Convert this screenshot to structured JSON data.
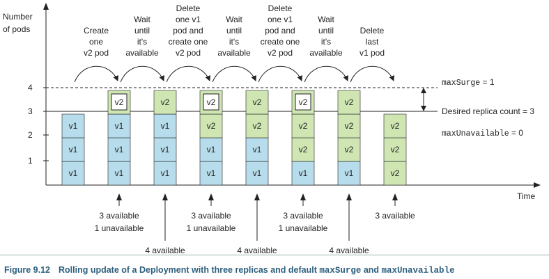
{
  "y_axis": {
    "title_line1": "Number",
    "title_line2": "of pods",
    "ticks": [
      "1",
      "2",
      "3",
      "4"
    ]
  },
  "x_axis": {
    "title": "Time"
  },
  "steps": [
    {
      "lines": [
        "Create",
        "one",
        "v2 pod"
      ]
    },
    {
      "lines": [
        "Wait",
        "until",
        "it's",
        "available"
      ]
    },
    {
      "lines": [
        "Delete",
        "one v1",
        "pod and",
        "create one",
        "v2 pod"
      ]
    },
    {
      "lines": [
        "Wait",
        "until",
        "it's",
        "available"
      ]
    },
    {
      "lines": [
        "Delete",
        "one v1",
        "pod and",
        "create one",
        "v2 pod"
      ]
    },
    {
      "lines": [
        "Wait",
        "until",
        "it's",
        "available"
      ]
    },
    {
      "lines": [
        "Delete",
        "last",
        "v1 pod"
      ]
    }
  ],
  "columns": [
    {
      "pods": [
        {
          "label": "v1",
          "state": "available-v1"
        },
        {
          "label": "v1",
          "state": "available-v1"
        },
        {
          "label": "v1",
          "state": "available-v1"
        }
      ]
    },
    {
      "pods": [
        {
          "label": "v1",
          "state": "available-v1"
        },
        {
          "label": "v1",
          "state": "available-v1"
        },
        {
          "label": "v1",
          "state": "available-v1"
        },
        {
          "label": "v2",
          "state": "unavailable-v2"
        }
      ]
    },
    {
      "pods": [
        {
          "label": "v1",
          "state": "available-v1"
        },
        {
          "label": "v1",
          "state": "available-v1"
        },
        {
          "label": "v1",
          "state": "available-v1"
        },
        {
          "label": "v2",
          "state": "available-v2"
        }
      ]
    },
    {
      "pods": [
        {
          "label": "v1",
          "state": "available-v1"
        },
        {
          "label": "v1",
          "state": "available-v1"
        },
        {
          "label": "v2",
          "state": "available-v2"
        },
        {
          "label": "v2",
          "state": "unavailable-v2"
        }
      ]
    },
    {
      "pods": [
        {
          "label": "v1",
          "state": "available-v1"
        },
        {
          "label": "v1",
          "state": "available-v1"
        },
        {
          "label": "v2",
          "state": "available-v2"
        },
        {
          "label": "v2",
          "state": "available-v2"
        }
      ]
    },
    {
      "pods": [
        {
          "label": "v1",
          "state": "available-v1"
        },
        {
          "label": "v2",
          "state": "available-v2"
        },
        {
          "label": "v2",
          "state": "available-v2"
        },
        {
          "label": "v2",
          "state": "unavailable-v2"
        }
      ]
    },
    {
      "pods": [
        {
          "label": "v1",
          "state": "available-v1"
        },
        {
          "label": "v2",
          "state": "available-v2"
        },
        {
          "label": "v2",
          "state": "available-v2"
        },
        {
          "label": "v2",
          "state": "available-v2"
        }
      ]
    },
    {
      "pods": [
        {
          "label": "v2",
          "state": "available-v2"
        },
        {
          "label": "v2",
          "state": "available-v2"
        },
        {
          "label": "v2",
          "state": "available-v2"
        }
      ]
    }
  ],
  "bottom_annotations": [
    {
      "lines": [
        "3 available",
        "1 unavailable"
      ],
      "column": 1
    },
    {
      "lines": [
        "4 available"
      ],
      "column": 2
    },
    {
      "lines": [
        "3 available",
        "1 unavailable"
      ],
      "column": 3
    },
    {
      "lines": [
        "4 available"
      ],
      "column": 4
    },
    {
      "lines": [
        "3 available",
        "1 unavailable"
      ],
      "column": 5
    },
    {
      "lines": [
        "4 available"
      ],
      "column": 6
    },
    {
      "lines": [
        "3 available"
      ],
      "column": 7
    }
  ],
  "right_labels": {
    "max_surge_name": "maxSurge",
    "max_surge_value": " = 1",
    "desired": "Desired replica count = 3",
    "max_unavailable_name": "maxUnavailable",
    "max_unavailable_value": " = 0"
  },
  "caption": {
    "number": "Figure 9.12",
    "text": "Rolling update of a Deployment with three replicas and default ",
    "code1": "maxSurge",
    "and": " and ",
    "code2": "maxUnavailable"
  },
  "colors": {
    "v1_fill": "#b7dceb",
    "v2_fill": "#cfe6b3",
    "unavailable_inner": "#ffffff",
    "caption": "#2d5f7d"
  }
}
